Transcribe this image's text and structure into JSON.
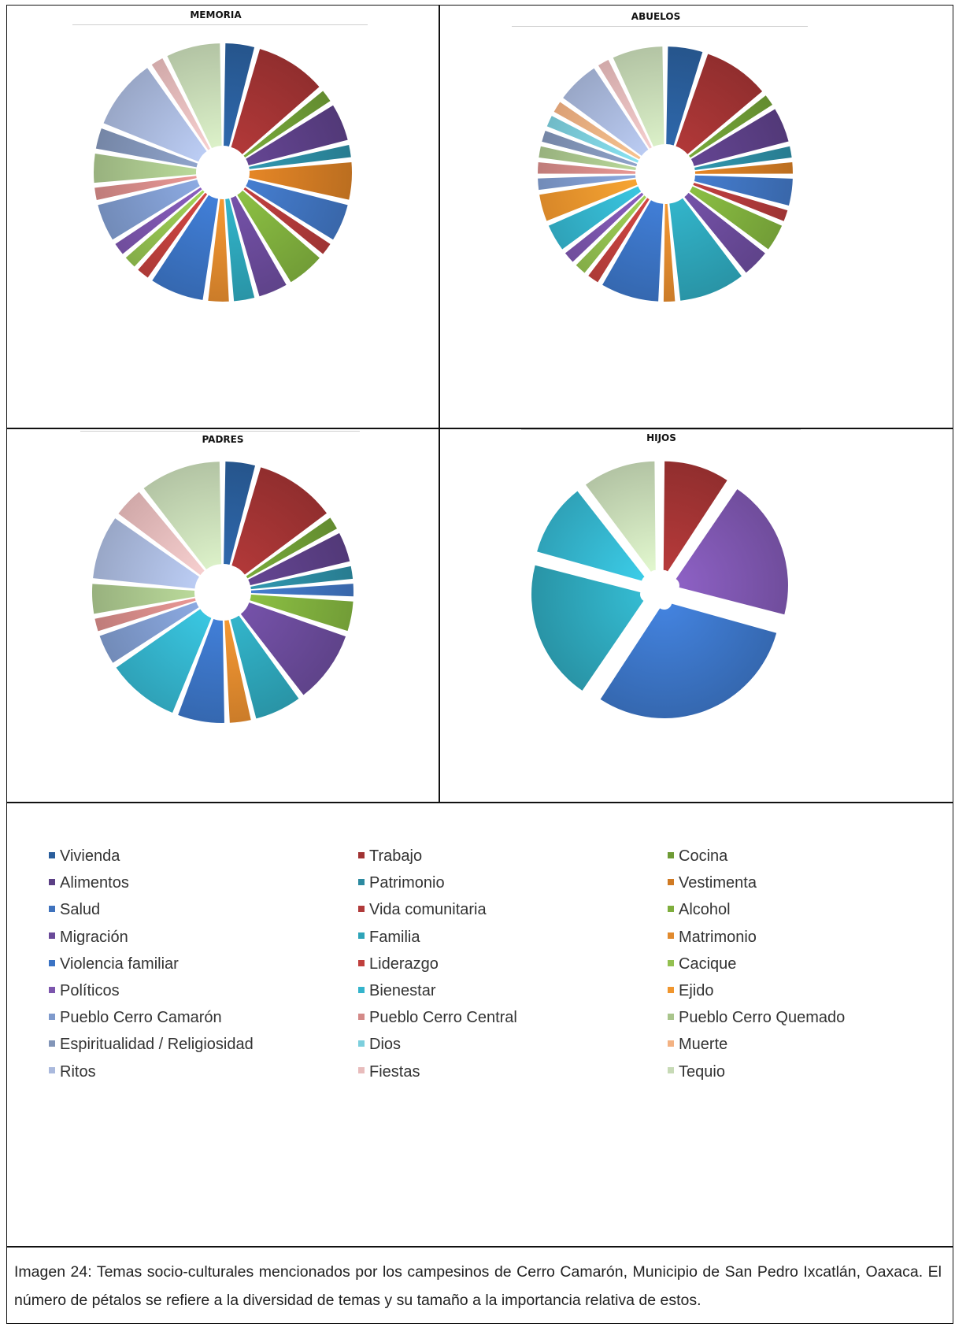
{
  "caption": "Imagen 24: Temas socio-culturales mencionados por los campesinos de Cerro Camarón, Municipio de San Pedro Ixcatlán, Oaxaca. El número de pétalos se refiere a la diversidad de temas y su tamaño a la importancia relativa de estos.",
  "legend": [
    {
      "label": "Vivienda",
      "color": "#2a5e9c"
    },
    {
      "label": "Trabajo",
      "color": "#a13333"
    },
    {
      "label": "Cocina",
      "color": "#6e9b35"
    },
    {
      "label": "Alimentos",
      "color": "#5b3f85"
    },
    {
      "label": "Patrimonio",
      "color": "#2c8aa0"
    },
    {
      "label": "Vestimenta",
      "color": "#d07a23"
    },
    {
      "label": "Salud",
      "color": "#3f72bd"
    },
    {
      "label": "Vida comunitaria",
      "color": "#b03a3a"
    },
    {
      "label": "Alcohol",
      "color": "#7fae3d"
    },
    {
      "label": "Migración",
      "color": "#6a4a99"
    },
    {
      "label": "Familia",
      "color": "#2ea4b8"
    },
    {
      "label": "Matrimonio",
      "color": "#e18a2e"
    },
    {
      "label": "Violencia familiar",
      "color": "#3b73c4"
    },
    {
      "label": "Liderazgo",
      "color": "#c0403d"
    },
    {
      "label": "Cacique",
      "color": "#93c050"
    },
    {
      "label": "Políticos",
      "color": "#7c55ad"
    },
    {
      "label": "Bienestar",
      "color": "#34b4cc"
    },
    {
      "label": "Ejido",
      "color": "#f0962e"
    },
    {
      "label": "Pueblo Cerro Camarón",
      "color": "#7f9acc"
    },
    {
      "label": "Pueblo Cerro Central",
      "color": "#d48a88"
    },
    {
      "label": "Pueblo Cerro Quemado",
      "color": "#a9c58c"
    },
    {
      "label": "Espiritualidad / Religiosidad",
      "color": "#8295b8"
    },
    {
      "label": "Dios",
      "color": "#7ccfdd"
    },
    {
      "label": "Muerte",
      "color": "#f3b283"
    },
    {
      "label": "Ritos",
      "color": "#aab9dd"
    },
    {
      "label": "Fiestas",
      "color": "#e8bcbc"
    },
    {
      "label": "Tequio",
      "color": "#c7dab6"
    }
  ],
  "chart_data": [
    {
      "type": "pie",
      "title": "MEMORIA",
      "categories": [
        "Vivienda",
        "Trabajo",
        "Cocina",
        "Alimentos",
        "Patrimonio",
        "Vestimenta",
        "Salud",
        "Vida comunitaria",
        "Alcohol",
        "Migración",
        "Familia",
        "Matrimonio",
        "Violencia familiar",
        "Liderazgo",
        "Cacique",
        "Políticos",
        "Bienestar",
        "Ejido",
        "Pueblo Cerro Camarón",
        "Pueblo Cerro Central",
        "Pueblo Cerro Quemado",
        "Espiritualidad / Religiosidad",
        "Dios",
        "Muerte",
        "Ritos",
        "Fiestas",
        "Tequio"
      ],
      "values": [
        4,
        9,
        2,
        5,
        2,
        5,
        5,
        2,
        5,
        4,
        3,
        3,
        7,
        2,
        2,
        2,
        0,
        0,
        5,
        2,
        4,
        3,
        0,
        0,
        9,
        2,
        7
      ]
    },
    {
      "type": "pie",
      "title": "ABUELOS",
      "categories": [
        "Vivienda",
        "Trabajo",
        "Cocina",
        "Alimentos",
        "Patrimonio",
        "Vestimenta",
        "Salud",
        "Vida comunitaria",
        "Alcohol",
        "Migración",
        "Familia",
        "Matrimonio",
        "Violencia familiar",
        "Liderazgo",
        "Cacique",
        "Políticos",
        "Bienestar",
        "Ejido",
        "Pueblo Cerro Camarón",
        "Pueblo Cerro Central",
        "Pueblo Cerro Quemado",
        "Espiritualidad / Religiosidad",
        "Dios",
        "Muerte",
        "Ritos",
        "Fiestas",
        "Tequio"
      ],
      "values": [
        5,
        9,
        2,
        5,
        2,
        2,
        4,
        2,
        4,
        4,
        9,
        2,
        8,
        2,
        2,
        2,
        4,
        4,
        2,
        2,
        2,
        2,
        2,
        2,
        6,
        2,
        7
      ]
    },
    {
      "type": "pie",
      "title": "PADRES",
      "categories": [
        "Vivienda",
        "Trabajo",
        "Cocina",
        "Alimentos",
        "Patrimonio",
        "Vestimenta",
        "Salud",
        "Vida comunitaria",
        "Alcohol",
        "Migración",
        "Familia",
        "Matrimonio",
        "Violencia familiar",
        "Liderazgo",
        "Cacique",
        "Políticos",
        "Bienestar",
        "Ejido",
        "Pueblo Cerro Camarón",
        "Pueblo Cerro Central",
        "Pueblo Cerro Quemado",
        "Espiritualidad / Religiosidad",
        "Dios",
        "Muerte",
        "Ritos",
        "Fiestas",
        "Tequio"
      ],
      "values": [
        4,
        10,
        2,
        4,
        2,
        0,
        2,
        0,
        4,
        9,
        6,
        3,
        6,
        0,
        0,
        0,
        9,
        0,
        4,
        2,
        4,
        0,
        0,
        0,
        8,
        4,
        10
      ]
    },
    {
      "type": "pie",
      "title": "HIJOS",
      "categories": [
        "Trabajo",
        "Políticos",
        "Violencia familiar",
        "Familia",
        "Bienestar",
        "Tequio"
      ],
      "values": [
        9,
        19,
        29,
        19,
        10,
        10
      ]
    }
  ]
}
